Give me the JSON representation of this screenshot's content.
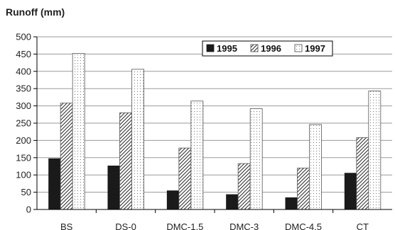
{
  "chart_data": {
    "type": "bar",
    "ylabel": "Runoff (mm)",
    "categories": [
      "BS",
      "DS-0",
      "DMC-1.5",
      "DMC-3",
      "DMC-4.5",
      "CT"
    ],
    "series": [
      {
        "name": "1995",
        "values": [
          148,
          127,
          55,
          44,
          35,
          106
        ],
        "color": "#1a1a1a",
        "fill": "solid"
      },
      {
        "name": "1996",
        "values": [
          308,
          280,
          178,
          133,
          120,
          208
        ],
        "color": "#333333",
        "fill": "hatch"
      },
      {
        "name": "1997",
        "values": [
          452,
          406,
          314,
          292,
          246,
          343
        ],
        "color": "#555555",
        "fill": "dots"
      }
    ],
    "ylim": [
      0,
      500
    ],
    "yticks": [
      "0",
      "50",
      "100",
      "150",
      "200",
      "250",
      "300",
      "350",
      "400",
      "450",
      "500"
    ],
    "grid": true,
    "legend": "top-right"
  }
}
